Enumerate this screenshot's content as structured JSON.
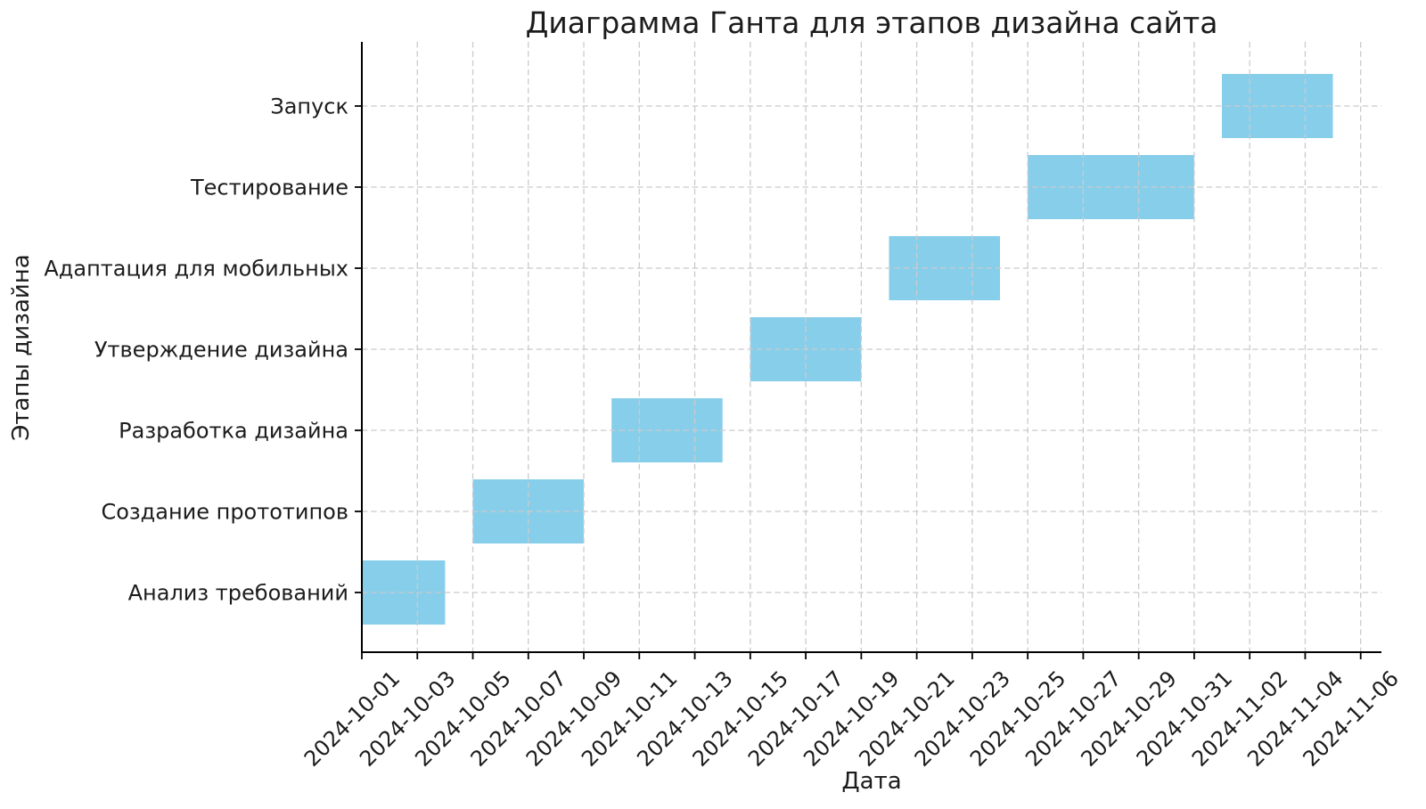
{
  "chart_data": {
    "type": "bar",
    "subtype": "gantt-horizontal",
    "title": "Диаграмма Ганта для этапов дизайна сайта",
    "xlabel": "Дата",
    "ylabel": "Этапы дизайна",
    "grid": true,
    "grid_style": "dashed",
    "legend_position": "none",
    "bar_color": "#87CEEB",
    "grid_color": "#cbcbcb",
    "axis_color": "#000000",
    "text_color": "#1c1c1c",
    "xlim": [
      "2024-10-01",
      "2024-11-06"
    ],
    "tick_step_days": 2,
    "x_tick_labels": [
      "2024-10-01",
      "2024-10-03",
      "2024-10-05",
      "2024-10-07",
      "2024-10-09",
      "2024-10-11",
      "2024-10-13",
      "2024-10-15",
      "2024-10-17",
      "2024-10-19",
      "2024-10-21",
      "2024-10-23",
      "2024-10-25",
      "2024-10-27",
      "2024-10-29",
      "2024-10-31",
      "2024-11-02",
      "2024-11-04",
      "2024-11-06"
    ],
    "tasks": [
      {
        "label": "Анализ требований",
        "start": "2024-10-01",
        "end": "2024-10-04",
        "duration_days": 3
      },
      {
        "label": "Создание прототипов",
        "start": "2024-10-05",
        "end": "2024-10-09",
        "duration_days": 4
      },
      {
        "label": "Разработка дизайна",
        "start": "2024-10-10",
        "end": "2024-10-14",
        "duration_days": 4
      },
      {
        "label": "Утверждение дизайна",
        "start": "2024-10-15",
        "end": "2024-10-19",
        "duration_days": 4
      },
      {
        "label": "Адаптация для мобильных",
        "start": "2024-10-20",
        "end": "2024-10-24",
        "duration_days": 4
      },
      {
        "label": "Тестирование",
        "start": "2024-10-25",
        "end": "2024-10-31",
        "duration_days": 6
      },
      {
        "label": "Запуск",
        "start": "2024-11-01",
        "end": "2024-11-05",
        "duration_days": 4
      }
    ]
  }
}
